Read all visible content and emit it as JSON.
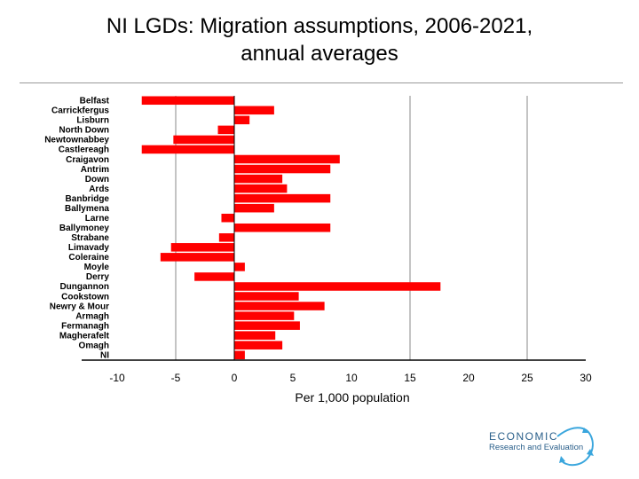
{
  "title_line1": "NI LGDs: Migration assumptions, 2006-2021,",
  "title_line2": "annual averages",
  "logo": {
    "line1": "ECONOMIC",
    "line2": "Research and Evaluation",
    "color": "#2a5f8a",
    "arrow_color": "#3aa6dd"
  },
  "chart_data": {
    "type": "bar",
    "orientation": "horizontal",
    "title": "NI LGDs: Migration assumptions, 2006-2021, annual averages",
    "xlabel": "Per 1,000 population",
    "ylabel": "",
    "xlim": [
      -10,
      30
    ],
    "xticks": [
      "-10",
      "-5",
      "0",
      "5",
      "10",
      "15",
      "20",
      "25",
      "30"
    ],
    "xtick_values": [
      -10,
      -5,
      0,
      5,
      10,
      15,
      20,
      25,
      30
    ],
    "gridlines_at": [
      -5,
      15,
      25
    ],
    "bar_color": "#ff0000",
    "categories": [
      "Belfast",
      "Carrickfergus",
      "Lisburn",
      "North Down",
      "Newtownabbey",
      "Castlereagh",
      "Craigavon",
      "Antrim",
      "Down",
      "Ards",
      "Banbridge",
      "Ballymena",
      "Larne",
      "Ballymoney",
      "Strabane",
      "Limavady",
      "Coleraine",
      "Moyle",
      "Derry",
      "Dungannon",
      "Cookstown",
      "Newry & Mour",
      "Armagh",
      "Fermanagh",
      "Magherafelt",
      "Omagh",
      "NI"
    ],
    "values": [
      -7.9,
      3.4,
      1.3,
      -1.4,
      -5.2,
      -7.9,
      9.0,
      8.2,
      4.1,
      4.5,
      8.2,
      3.4,
      -1.1,
      8.2,
      -1.3,
      -5.4,
      -6.3,
      0.9,
      -3.4,
      17.6,
      5.5,
      7.7,
      5.1,
      5.6,
      3.5,
      4.1,
      0.9
    ]
  }
}
